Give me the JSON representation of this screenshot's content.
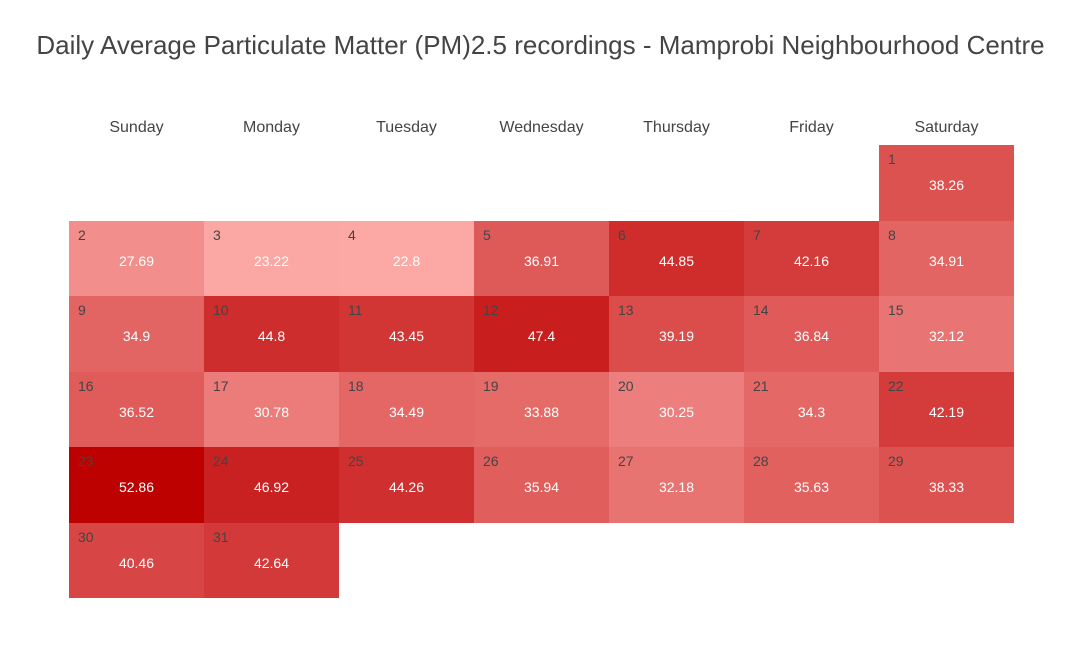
{
  "chart_data": {
    "type": "heatmap",
    "title": "Daily Average Particulate Matter (PM)2.5 recordings - Mamprobi Neighbourhood Centre",
    "weekdays": [
      "Sunday",
      "Monday",
      "Tuesday",
      "Wednesday",
      "Thursday",
      "Friday",
      "Saturday"
    ],
    "first_weekday_index": 6,
    "days": [
      {
        "day": 1,
        "value": 38.26
      },
      {
        "day": 2,
        "value": 27.69
      },
      {
        "day": 3,
        "value": 23.22
      },
      {
        "day": 4,
        "value": 22.8
      },
      {
        "day": 5,
        "value": 36.91
      },
      {
        "day": 6,
        "value": 44.85
      },
      {
        "day": 7,
        "value": 42.16
      },
      {
        "day": 8,
        "value": 34.91
      },
      {
        "day": 9,
        "value": 34.9
      },
      {
        "day": 10,
        "value": 44.8
      },
      {
        "day": 11,
        "value": 43.45
      },
      {
        "day": 12,
        "value": 47.4
      },
      {
        "day": 13,
        "value": 39.19
      },
      {
        "day": 14,
        "value": 36.84
      },
      {
        "day": 15,
        "value": 32.12
      },
      {
        "day": 16,
        "value": 36.52
      },
      {
        "day": 17,
        "value": 30.78
      },
      {
        "day": 18,
        "value": 34.49
      },
      {
        "day": 19,
        "value": 33.88
      },
      {
        "day": 20,
        "value": 30.25
      },
      {
        "day": 21,
        "value": 34.3
      },
      {
        "day": 22,
        "value": 42.19
      },
      {
        "day": 23,
        "value": 52.86
      },
      {
        "day": 24,
        "value": 46.92
      },
      {
        "day": 25,
        "value": 44.26
      },
      {
        "day": 26,
        "value": 35.94
      },
      {
        "day": 27,
        "value": 32.18
      },
      {
        "day": 28,
        "value": 35.63
      },
      {
        "day": 29,
        "value": 38.33
      },
      {
        "day": 30,
        "value": 40.46
      },
      {
        "day": 31,
        "value": 42.64
      }
    ],
    "color_scale": {
      "low": "#fca9a6",
      "high": "#bd0000"
    },
    "value_range": [
      22.8,
      52.86
    ]
  }
}
